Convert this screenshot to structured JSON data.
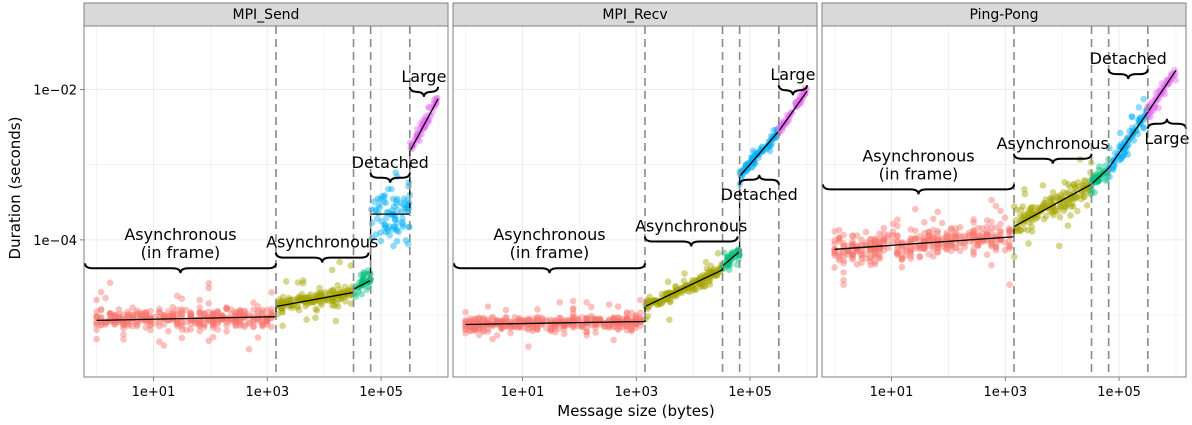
{
  "chart_data": {
    "type": "scatter",
    "xlabel": "Message size (bytes)",
    "ylabel": "Duration (seconds)",
    "x_scale": "log10",
    "y_scale": "log10",
    "xlim": [
      0.6,
      1500000
    ],
    "ylim": [
      1.5e-06,
      0.07
    ],
    "x_ticks": [
      {
        "value": 10,
        "label": "1e+01"
      },
      {
        "value": 1000,
        "label": "1e+03"
      },
      {
        "value": 100000,
        "label": "1e+05"
      }
    ],
    "y_ticks": [
      {
        "value": 0.0001,
        "label": "1e−04"
      },
      {
        "value": 0.01,
        "label": "1e−02"
      }
    ],
    "grid": true,
    "legend": "none",
    "colors": {
      "Asynchronous (in frame)": "#F8766D",
      "Asynchronous": "#A3A500",
      "Asynchronous (upper)": "#00BF7D",
      "Detached": "#00B0F6",
      "Large": "#E76BF3"
    },
    "panels": [
      {
        "title": "MPI_Send",
        "breakpoints": [
          1420,
          32768,
          65536,
          320000
        ],
        "segments": [
          {
            "regime": "Asynchronous (in frame)",
            "x": [
              1,
              1420
            ],
            "fit_y": [
              8.5e-06,
              9.5e-06
            ],
            "noise_dex": 0.06,
            "outlier_dex": 0.4
          },
          {
            "regime": "Asynchronous",
            "x": [
              1420,
              32768
            ],
            "fit_y": [
              1.3e-05,
              2e-05
            ],
            "noise_dex": 0.05,
            "outlier_dex": 0.35
          },
          {
            "regime": "Asynchronous (upper)",
            "x": [
              32768,
              65536
            ],
            "fit_y": [
              2.2e-05,
              2.9e-05
            ],
            "noise_dex": 0.06,
            "outlier_dex": 0.25
          },
          {
            "regime": "Detached",
            "x": [
              65536,
              320000
            ],
            "fit_y": [
              0.00022,
              0.00022
            ],
            "noise_dex": 0.2,
            "outlier_dex": 0.3
          },
          {
            "regime": "Large",
            "x": [
              320000,
              1000000
            ],
            "fit_y": [
              0.0015,
              0.0075
            ],
            "noise_dex": 0.05,
            "outlier_dex": 0.1
          }
        ],
        "annotations": [
          {
            "label": "Asynchronous\n(in frame)",
            "x": [
              0.6,
              1420
            ],
            "y": 4.2e-05,
            "side": "above"
          },
          {
            "label": "Asynchronous",
            "x": [
              1420,
              60000
            ],
            "y": 5.8e-05,
            "side": "above"
          },
          {
            "label": "Detached",
            "x": [
              65536,
              320000
            ],
            "y": 0.00067,
            "side": "above"
          },
          {
            "label": "Large",
            "x": [
              320000,
              1000000
            ],
            "y": 0.0093,
            "side": "above"
          }
        ]
      },
      {
        "title": "MPI_Recv",
        "breakpoints": [
          1420,
          32768,
          65536,
          320000
        ],
        "segments": [
          {
            "regime": "Asynchronous (in frame)",
            "x": [
              1,
              1420
            ],
            "fit_y": [
              7.5e-06,
              8.2e-06
            ],
            "noise_dex": 0.05,
            "outlier_dex": 0.3
          },
          {
            "regime": "Asynchronous",
            "x": [
              1420,
              32768
            ],
            "fit_y": [
              1.3e-05,
              4e-05
            ],
            "noise_dex": 0.04,
            "outlier_dex": 0.25
          },
          {
            "regime": "Asynchronous (upper)",
            "x": [
              32768,
              65536
            ],
            "fit_y": [
              4.5e-05,
              7e-05
            ],
            "noise_dex": 0.04,
            "outlier_dex": 0.15
          },
          {
            "regime": "Detached",
            "x": [
              65536,
              320000
            ],
            "fit_y": [
              0.0007,
              0.0028
            ],
            "noise_dex": 0.04,
            "outlier_dex": 0.1
          },
          {
            "regime": "Large",
            "x": [
              320000,
              1000000
            ],
            "fit_y": [
              0.0028,
              0.0095
            ],
            "noise_dex": 0.03,
            "outlier_dex": 0.08
          }
        ],
        "annotations": [
          {
            "label": "Asynchronous\n(in frame)",
            "x": [
              0.6,
              1420
            ],
            "y": 4.2e-05,
            "side": "above"
          },
          {
            "label": "Asynchronous",
            "x": [
              1420,
              60000
            ],
            "y": 9.5e-05,
            "side": "above"
          },
          {
            "label": "Detached",
            "x": [
              65536,
              320000
            ],
            "y": 0.00063,
            "side": "below"
          },
          {
            "label": "Large",
            "x": [
              320000,
              1000000
            ],
            "y": 0.0098,
            "side": "above"
          }
        ]
      },
      {
        "title": "Ping-Pong",
        "breakpoints": [
          1420,
          32768,
          65536,
          320000
        ],
        "segments": [
          {
            "regime": "Asynchronous (in frame)",
            "x": [
              1,
              1420
            ],
            "fit_y": [
              7.5e-05,
              0.00011
            ],
            "noise_dex": 0.1,
            "outlier_dex": 0.5
          },
          {
            "regime": "Asynchronous",
            "x": [
              1420,
              32768
            ],
            "fit_y": [
              0.00015,
              0.00055
            ],
            "noise_dex": 0.07,
            "outlier_dex": 0.45
          },
          {
            "regime": "Asynchronous (upper)",
            "x": [
              32768,
              65536
            ],
            "fit_y": [
              0.00055,
              0.0009
            ],
            "noise_dex": 0.06,
            "outlier_dex": 0.3
          },
          {
            "regime": "Detached",
            "x": [
              65536,
              320000
            ],
            "fit_y": [
              0.0009,
              0.005
            ],
            "noise_dex": 0.06,
            "outlier_dex": 0.3
          },
          {
            "regime": "Large",
            "x": [
              320000,
              1000000
            ],
            "fit_y": [
              0.005,
              0.018
            ],
            "noise_dex": 0.04,
            "outlier_dex": 0.12
          }
        ],
        "annotations": [
          {
            "label": "Asynchronous\n(in frame)",
            "x": [
              0.6,
              1420
            ],
            "y": 0.00047,
            "side": "above"
          },
          {
            "label": "Asynchronous",
            "x": [
              1420,
              32768
            ],
            "y": 0.0012,
            "side": "above"
          },
          {
            "label": "Detached",
            "x": [
              65536,
              320000
            ],
            "y": 0.016,
            "side": "above"
          },
          {
            "label": "Large",
            "x": [
              320000,
              1500000
            ],
            "y": 0.0035,
            "side": "below"
          }
        ]
      }
    ]
  }
}
